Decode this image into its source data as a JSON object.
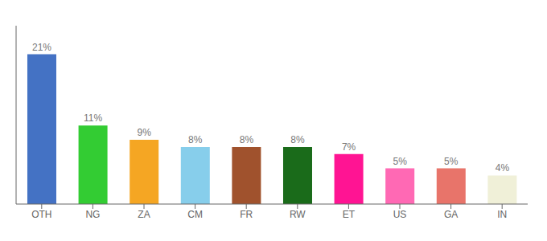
{
  "chart_data": {
    "type": "bar",
    "categories": [
      "OTH",
      "NG",
      "ZA",
      "CM",
      "FR",
      "RW",
      "ET",
      "US",
      "GA",
      "IN"
    ],
    "values": [
      21,
      11,
      9,
      8,
      8,
      8,
      7,
      5,
      5,
      4
    ],
    "value_labels": [
      "21%",
      "11%",
      "9%",
      "8%",
      "8%",
      "8%",
      "7%",
      "5%",
      "5%",
      "4%"
    ],
    "colors": [
      "#4472c4",
      "#33cc33",
      "#f5a623",
      "#87ceeb",
      "#a0522d",
      "#1a6b1a",
      "#ff1493",
      "#ff69b4",
      "#e8746a",
      "#f0f0d8"
    ],
    "ylim": [
      0,
      25
    ],
    "grid": false,
    "data_labels": true,
    "tick_labels": "x"
  }
}
